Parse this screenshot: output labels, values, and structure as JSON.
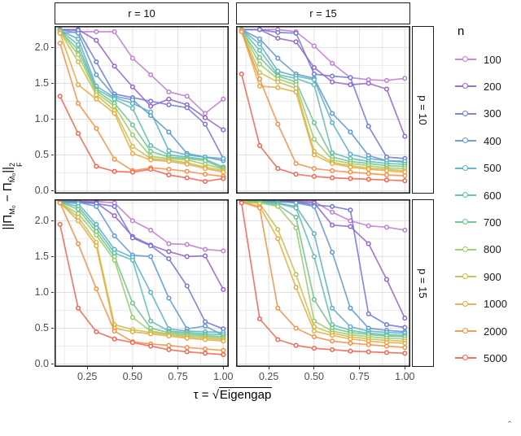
{
  "figure": {
    "ylabel": {
      "open": "||Π",
      "sub1": "M₀",
      "mid": " − Π",
      "sub2": "M̂₀",
      "close": "||",
      "sup": "2",
      "subF": "F"
    },
    "xlabel": {
      "prefix": "τ = ",
      "radical": "√",
      "radicand": "Eigengap"
    },
    "legend": {
      "title": "n"
    },
    "corner_artifact": "ˆ"
  },
  "chart_data": {
    "type": "line",
    "x": [
      0.1,
      0.2,
      0.3,
      0.4,
      0.5,
      0.6,
      0.7,
      0.8,
      0.9,
      1.0
    ],
    "x_ticks": [
      "0.25",
      "0.50",
      "0.75",
      "1.00"
    ],
    "x_tick_values": [
      0.25,
      0.5,
      0.75,
      1.0
    ],
    "y_ticks": [
      "0.0",
      "0.5",
      "1.0",
      "1.5",
      "2.0"
    ],
    "y_tick_values": [
      0.0,
      0.5,
      1.0,
      1.5,
      2.0
    ],
    "xlim": [
      0.07,
      1.03
    ],
    "ylim": [
      -0.04,
      2.3
    ],
    "xlabel_text": "τ = √Eigengap",
    "ylabel_text": "||Π_M0 − Π_M̂0||²_F",
    "grid": true,
    "legend_title": "n",
    "legend_position": "right",
    "col_facets": [
      "r = 10",
      "r = 15"
    ],
    "row_facets": [
      "p = 10",
      "p = 15"
    ],
    "series_names": [
      "100",
      "200",
      "300",
      "400",
      "500",
      "600",
      "700",
      "800",
      "900",
      "1000",
      "2000",
      "5000"
    ],
    "colors": [
      "#c07ed0",
      "#9065c8",
      "#7077d6",
      "#5f97d2",
      "#5caec9",
      "#5fbcae",
      "#6ec28d",
      "#9aca67",
      "#c9bd4e",
      "#e6ab3f",
      "#f09148",
      "#ee6450"
    ],
    "panels": [
      {
        "col": "r = 10",
        "row": "p = 10",
        "series": [
          [
            2.2,
            2.22,
            2.22,
            2.22,
            1.85,
            1.62,
            1.38,
            1.32,
            1.08,
            1.28
          ],
          [
            2.25,
            2.25,
            2.1,
            1.74,
            1.45,
            1.18,
            1.28,
            1.2,
            1.02,
            0.85
          ],
          [
            2.25,
            2.24,
            1.8,
            1.35,
            1.3,
            1.25,
            1.2,
            1.16,
            0.93,
            0.45
          ],
          [
            2.25,
            2.2,
            1.62,
            1.32,
            1.27,
            1.05,
            0.82,
            0.52,
            0.47,
            0.42
          ],
          [
            2.24,
            2.12,
            1.46,
            1.3,
            1.22,
            1.1,
            0.56,
            0.5,
            0.47,
            0.45
          ],
          [
            2.24,
            2.04,
            1.42,
            1.28,
            1.15,
            0.63,
            0.5,
            0.47,
            0.44,
            0.33
          ],
          [
            2.23,
            1.97,
            1.4,
            1.22,
            0.92,
            0.55,
            0.47,
            0.45,
            0.42,
            0.31
          ],
          [
            2.23,
            1.9,
            1.37,
            1.18,
            0.78,
            0.48,
            0.45,
            0.43,
            0.37,
            0.3
          ],
          [
            2.22,
            1.8,
            1.34,
            1.12,
            0.62,
            0.45,
            0.43,
            0.39,
            0.33,
            0.28
          ],
          [
            2.2,
            1.48,
            1.28,
            1.08,
            0.52,
            0.43,
            0.41,
            0.37,
            0.31,
            0.26
          ],
          [
            2.06,
            1.22,
            0.87,
            0.44,
            0.28,
            0.32,
            0.3,
            0.27,
            0.23,
            0.2
          ],
          [
            1.32,
            0.8,
            0.34,
            0.27,
            0.26,
            0.3,
            0.22,
            0.18,
            0.13,
            0.17
          ]
        ]
      },
      {
        "col": "r = 15",
        "row": "p = 10",
        "series": [
          [
            2.25,
            2.25,
            2.25,
            2.22,
            2.02,
            1.78,
            1.58,
            1.55,
            1.54,
            1.57
          ],
          [
            2.25,
            2.25,
            2.13,
            2.08,
            1.72,
            1.52,
            1.48,
            1.5,
            1.42,
            0.76
          ],
          [
            2.25,
            2.25,
            2.21,
            2.2,
            1.63,
            1.6,
            1.58,
            0.9,
            0.47,
            0.45
          ],
          [
            2.25,
            2.12,
            1.85,
            1.63,
            1.57,
            1.08,
            0.82,
            0.49,
            0.42,
            0.4
          ],
          [
            2.25,
            2.05,
            1.67,
            1.6,
            1.55,
            0.95,
            0.51,
            0.45,
            0.42,
            0.41
          ],
          [
            2.25,
            1.96,
            1.62,
            1.57,
            1.48,
            0.53,
            0.45,
            0.41,
            0.38,
            0.37
          ],
          [
            2.24,
            1.86,
            1.6,
            1.52,
            0.95,
            0.47,
            0.41,
            0.38,
            0.35,
            0.34
          ],
          [
            2.24,
            1.77,
            1.56,
            1.48,
            0.72,
            0.43,
            0.38,
            0.35,
            0.32,
            0.31
          ],
          [
            2.24,
            1.65,
            1.52,
            1.43,
            0.55,
            0.4,
            0.35,
            0.32,
            0.3,
            0.28
          ],
          [
            2.23,
            1.46,
            1.44,
            1.38,
            0.5,
            0.38,
            0.33,
            0.3,
            0.28,
            0.26
          ],
          [
            2.22,
            1.56,
            0.93,
            0.38,
            0.31,
            0.28,
            0.26,
            0.24,
            0.22,
            0.21
          ],
          [
            1.63,
            0.63,
            0.31,
            0.23,
            0.2,
            0.18,
            0.17,
            0.16,
            0.15,
            0.14
          ]
        ]
      },
      {
        "col": "r = 10",
        "row": "p = 15",
        "series": [
          [
            2.27,
            2.27,
            2.27,
            2.25,
            2.0,
            1.87,
            1.68,
            1.67,
            1.6,
            1.58
          ],
          [
            2.27,
            2.27,
            2.25,
            2.07,
            1.78,
            1.66,
            1.57,
            1.5,
            1.51,
            1.04
          ],
          [
            2.27,
            2.26,
            2.24,
            2.2,
            1.76,
            1.65,
            1.47,
            1.09,
            0.59,
            0.49
          ],
          [
            2.27,
            2.26,
            2.2,
            1.79,
            1.52,
            1.5,
            0.92,
            0.49,
            0.53,
            0.4
          ],
          [
            2.26,
            2.24,
            1.95,
            1.6,
            1.49,
            1.0,
            0.49,
            0.46,
            0.45,
            0.44
          ],
          [
            2.26,
            2.2,
            1.9,
            1.55,
            1.45,
            0.6,
            0.46,
            0.44,
            0.42,
            0.41
          ],
          [
            2.26,
            2.16,
            1.85,
            1.5,
            0.85,
            0.5,
            0.44,
            0.42,
            0.4,
            0.38
          ],
          [
            2.25,
            2.1,
            1.8,
            1.45,
            0.65,
            0.46,
            0.42,
            0.4,
            0.38,
            0.36
          ],
          [
            2.25,
            2.05,
            1.7,
            0.55,
            0.48,
            0.44,
            0.41,
            0.38,
            0.36,
            0.34
          ],
          [
            2.25,
            2.0,
            1.65,
            0.5,
            0.45,
            0.42,
            0.39,
            0.36,
            0.34,
            0.32
          ],
          [
            2.25,
            1.68,
            1.05,
            0.46,
            0.31,
            0.28,
            0.26,
            0.23,
            0.21,
            0.19
          ],
          [
            1.95,
            0.78,
            0.45,
            0.35,
            0.3,
            0.25,
            0.2,
            0.17,
            0.15,
            0.13
          ]
        ]
      },
      {
        "col": "r = 15",
        "row": "p = 15",
        "series": [
          [
            2.28,
            2.28,
            2.28,
            2.28,
            2.27,
            2.12,
            2.0,
            1.93,
            1.91,
            1.87
          ],
          [
            2.28,
            2.28,
            2.28,
            2.27,
            2.25,
            1.94,
            1.92,
            1.68,
            1.18,
            0.64
          ],
          [
            2.28,
            2.28,
            2.27,
            2.26,
            2.22,
            2.2,
            2.15,
            0.7,
            0.55,
            0.51
          ],
          [
            2.28,
            2.28,
            2.27,
            2.25,
            2.2,
            1.56,
            0.78,
            0.5,
            0.47,
            0.45
          ],
          [
            2.28,
            2.27,
            2.25,
            2.2,
            1.82,
            0.78,
            0.52,
            0.46,
            0.44,
            0.43
          ],
          [
            2.28,
            2.27,
            2.24,
            2.18,
            1.5,
            0.55,
            0.47,
            0.43,
            0.41,
            0.4
          ],
          [
            2.27,
            2.26,
            2.22,
            2.05,
            0.9,
            0.5,
            0.44,
            0.41,
            0.39,
            0.38
          ],
          [
            2.27,
            2.25,
            2.2,
            1.9,
            0.6,
            0.46,
            0.41,
            0.38,
            0.36,
            0.35
          ],
          [
            2.27,
            2.24,
            1.88,
            1.25,
            0.52,
            0.43,
            0.38,
            0.35,
            0.33,
            0.32
          ],
          [
            2.27,
            2.2,
            1.75,
            1.07,
            0.46,
            0.4,
            0.35,
            0.32,
            0.3,
            0.29
          ],
          [
            2.26,
            2.18,
            0.78,
            0.5,
            0.38,
            0.32,
            0.29,
            0.27,
            0.25,
            0.23
          ],
          [
            2.25,
            0.63,
            0.34,
            0.26,
            0.22,
            0.2,
            0.18,
            0.17,
            0.16,
            0.15
          ]
        ]
      }
    ]
  }
}
